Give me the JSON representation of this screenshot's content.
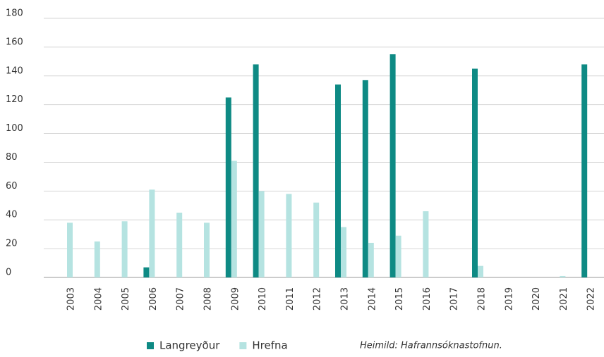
{
  "chart_data": {
    "type": "bar",
    "categories": [
      "2003",
      "2004",
      "2005",
      "2006",
      "2007",
      "2008",
      "2009",
      "2010",
      "2011",
      "2012",
      "2013",
      "2014",
      "2015",
      "2016",
      "2017",
      "2018",
      "2019",
      "2020",
      "2021",
      "2022"
    ],
    "series": [
      {
        "name": "Langreyður",
        "color": "#0e8a84",
        "values": [
          0,
          0,
          0,
          7,
          0,
          0,
          125,
          148,
          0,
          0,
          134,
          137,
          155,
          0,
          0,
          145,
          0,
          0,
          0,
          148
        ]
      },
      {
        "name": "Hrefna",
        "color": "#b5e3e1",
        "values": [
          38,
          25,
          39,
          61,
          45,
          38,
          81,
          60,
          58,
          52,
          35,
          24,
          29,
          46,
          0,
          8,
          0,
          0,
          1,
          0
        ]
      }
    ],
    "ylim": [
      0,
      180
    ],
    "yticks": [
      0,
      20,
      40,
      60,
      80,
      100,
      120,
      140,
      160,
      180
    ],
    "grid": true,
    "source": "Heimild: Hafrannsóknastofnun."
  }
}
